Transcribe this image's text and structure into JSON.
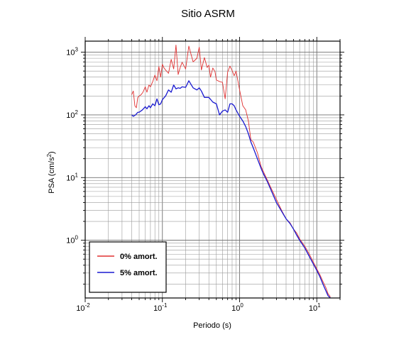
{
  "chart_data": {
    "type": "line",
    "title": "Sitio ASRM",
    "xlabel": "Periodo (s)",
    "ylabel_main": "PSA (cm/s",
    "ylabel_sup": "2",
    "ylabel_close": ")",
    "x_scale": "log",
    "y_scale": "log",
    "xlim": [
      0.01,
      20
    ],
    "ylim": [
      0.12,
      1500
    ],
    "grid": true,
    "x_ticks": [
      {
        "value": 0.01,
        "base": "10",
        "exp": "-2"
      },
      {
        "value": 0.1,
        "base": "10",
        "exp": "-1"
      },
      {
        "value": 1,
        "base": "10",
        "exp": "0"
      },
      {
        "value": 10,
        "base": "10",
        "exp": "1"
      }
    ],
    "y_ticks": [
      {
        "value": 1,
        "base": "10",
        "exp": "0"
      },
      {
        "value": 10,
        "base": "10",
        "exp": "1"
      },
      {
        "value": 100,
        "base": "10",
        "exp": "2"
      },
      {
        "value": 1000,
        "base": "10",
        "exp": "3"
      }
    ],
    "legend_position": "bottom-left",
    "series": [
      {
        "name": "0% amort.",
        "color": "#e03030",
        "x": [
          0.04,
          0.042,
          0.044,
          0.046,
          0.048,
          0.05,
          0.053,
          0.056,
          0.06,
          0.063,
          0.067,
          0.07,
          0.075,
          0.08,
          0.085,
          0.09,
          0.095,
          0.1,
          0.105,
          0.11,
          0.12,
          0.13,
          0.14,
          0.15,
          0.16,
          0.17,
          0.18,
          0.2,
          0.22,
          0.25,
          0.28,
          0.3,
          0.32,
          0.35,
          0.38,
          0.4,
          0.42,
          0.45,
          0.48,
          0.5,
          0.55,
          0.6,
          0.65,
          0.7,
          0.75,
          0.8,
          0.85,
          0.9,
          1.0,
          1.1,
          1.2,
          1.3,
          1.4,
          1.5,
          1.7,
          1.9,
          2.0,
          2.3,
          2.6,
          3.0,
          3.5,
          4.0,
          4.5,
          5.0,
          5.5,
          6.0,
          7.0,
          8.0,
          9.0,
          10.0,
          11.0,
          12.0,
          13.0,
          14.0,
          15.0
        ],
        "y": [
          210,
          240,
          140,
          130,
          190,
          200,
          210,
          230,
          280,
          230,
          300,
          280,
          340,
          430,
          350,
          590,
          400,
          640,
          560,
          520,
          460,
          770,
          540,
          1300,
          440,
          570,
          690,
          540,
          1250,
          700,
          800,
          1200,
          520,
          820,
          570,
          620,
          400,
          560,
          490,
          360,
          340,
          330,
          180,
          480,
          600,
          510,
          420,
          500,
          250,
          140,
          120,
          80,
          40,
          37,
          25,
          15,
          13,
          9,
          6.5,
          4.5,
          3.0,
          2.2,
          1.9,
          1.5,
          1.3,
          1.05,
          0.8,
          0.6,
          0.45,
          0.35,
          0.28,
          0.22,
          0.18,
          0.14,
          0.125
        ]
      },
      {
        "name": "5% amort.",
        "color": "#1a1ad0",
        "x": [
          0.04,
          0.042,
          0.045,
          0.048,
          0.05,
          0.055,
          0.06,
          0.063,
          0.067,
          0.07,
          0.075,
          0.08,
          0.085,
          0.09,
          0.095,
          0.1,
          0.11,
          0.12,
          0.13,
          0.14,
          0.15,
          0.16,
          0.17,
          0.18,
          0.2,
          0.22,
          0.25,
          0.28,
          0.3,
          0.32,
          0.35,
          0.4,
          0.45,
          0.5,
          0.55,
          0.6,
          0.65,
          0.7,
          0.75,
          0.8,
          0.85,
          0.9,
          1.0,
          1.1,
          1.2,
          1.3,
          1.4,
          1.5,
          1.7,
          1.9,
          2.0,
          2.3,
          2.6,
          3.0,
          3.5,
          4.0,
          4.5,
          5.0,
          5.5,
          6.0,
          7.0,
          8.0,
          9.0,
          10.0,
          11.0,
          12.0,
          13.0,
          14.0,
          15.0
        ],
        "y": [
          100,
          95,
          100,
          110,
          110,
          120,
          135,
          125,
          140,
          130,
          150,
          140,
          180,
          145,
          150,
          175,
          200,
          250,
          230,
          300,
          260,
          270,
          265,
          280,
          275,
          350,
          270,
          250,
          270,
          240,
          190,
          190,
          160,
          150,
          100,
          115,
          120,
          110,
          150,
          150,
          140,
          120,
          95,
          80,
          65,
          50,
          37,
          30,
          20,
          14,
          12,
          8.5,
          6,
          4,
          2.9,
          2.2,
          1.85,
          1.5,
          1.2,
          1.0,
          0.75,
          0.55,
          0.42,
          0.33,
          0.26,
          0.2,
          0.16,
          0.13,
          0.12
        ]
      }
    ]
  }
}
